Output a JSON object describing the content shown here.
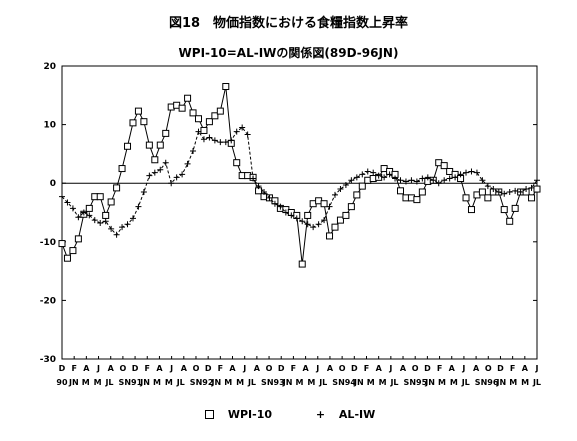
{
  "chart_data": {
    "type": "line",
    "title": "図18　物価指数における食糧指数上昇率",
    "subtitle": "WPI-10=AL-IWの関係図(89D-96JN)",
    "ylim": [
      -30,
      20
    ],
    "yticks": [
      20,
      10,
      0,
      -10,
      -20,
      -30
    ],
    "month_labels": [
      "D",
      "F",
      "A",
      "J",
      "A",
      "O",
      "D",
      "F",
      "A",
      "J",
      "A",
      "O",
      "D",
      "F",
      "A",
      "J",
      "A",
      "O",
      "D",
      "F",
      "A",
      "J",
      "A",
      "O",
      "D",
      "F",
      "A",
      "J",
      "A",
      "O",
      "D",
      "F",
      "A",
      "J",
      "A",
      "O",
      "D",
      "F",
      "A",
      "J"
    ],
    "year_labels": [
      "90",
      "JN",
      "M",
      "M",
      "JL",
      "S",
      "N91",
      "JN",
      "M",
      "M",
      "JL",
      "S",
      "N92",
      "JN",
      "M",
      "M",
      "JL",
      "S",
      "N93",
      "JN",
      "M",
      "M",
      "JL",
      "S",
      "N94",
      "JN",
      "M",
      "M",
      "JL",
      "S",
      "N95",
      "JN",
      "M",
      "M",
      "JL",
      "S",
      "N96",
      "JN",
      "M",
      "M",
      "JL"
    ],
    "series": [
      {
        "name": "WPI-10",
        "marker": "square",
        "line": "solid",
        "values": [
          -10.3,
          -12.8,
          -11.5,
          -9.5,
          -5.3,
          -4.3,
          -2.3,
          -2.3,
          -5.5,
          -3.2,
          -0.8,
          2.5,
          6.3,
          10.3,
          12.3,
          10.5,
          6.5,
          4.0,
          6.5,
          8.5,
          13.0,
          13.3,
          12.8,
          14.5,
          12.0,
          11.0,
          9.0,
          10.5,
          11.5,
          12.3,
          16.5,
          6.8,
          3.5,
          1.3,
          1.3,
          1.0,
          -1.3,
          -2.3,
          -2.5,
          -3.0,
          -4.3,
          -4.5,
          -5.0,
          -5.5,
          -13.8,
          -5.5,
          -3.5,
          -3.0,
          -3.5,
          -9.0,
          -7.5,
          -6.3,
          -5.5,
          -4.0,
          -2.0,
          -0.5,
          0.5,
          0.8,
          1.0,
          2.5,
          2.0,
          1.5,
          -1.3,
          -2.5,
          -2.5,
          -2.8,
          -1.5,
          0.3,
          0.5,
          3.5,
          3.0,
          2.0,
          1.5,
          0.8,
          -2.5,
          -4.5,
          -2.0,
          -1.5,
          -2.5,
          -1.5,
          -1.5,
          -4.5,
          -6.5,
          -4.3,
          -1.5,
          -1.5,
          -2.5,
          -1.0
        ]
      },
      {
        "name": "AL-IW",
        "marker": "plus",
        "line": "dashed",
        "values": [
          -2.3,
          -3.3,
          -4.3,
          -5.8,
          -5.0,
          -5.5,
          -6.3,
          -6.8,
          -6.5,
          -7.8,
          -8.8,
          -7.5,
          -7.0,
          -6.0,
          -4.0,
          -1.5,
          1.3,
          1.8,
          2.3,
          3.5,
          0.0,
          1.0,
          1.5,
          3.3,
          5.5,
          8.8,
          7.5,
          7.8,
          7.3,
          7.0,
          7.0,
          7.3,
          8.8,
          9.5,
          8.3,
          0.8,
          -0.5,
          -1.5,
          -2.5,
          -3.5,
          -4.0,
          -5.0,
          -5.5,
          -6.0,
          -6.5,
          -7.0,
          -7.5,
          -7.0,
          -6.3,
          -4.0,
          -2.0,
          -1.0,
          -0.3,
          0.5,
          1.0,
          1.5,
          2.0,
          1.8,
          1.3,
          1.0,
          1.5,
          0.8,
          0.5,
          0.3,
          0.5,
          0.3,
          0.8,
          1.0,
          0.5,
          0.0,
          0.5,
          0.8,
          1.0,
          1.5,
          1.8,
          2.0,
          1.8,
          0.5,
          -0.5,
          -1.0,
          -1.5,
          -1.8,
          -1.5,
          -1.3,
          -1.5,
          -1.0,
          -0.8,
          0.5
        ]
      }
    ],
    "legend": {
      "position": "bottom",
      "items": [
        "WPI-10",
        "AL-IW"
      ]
    }
  }
}
